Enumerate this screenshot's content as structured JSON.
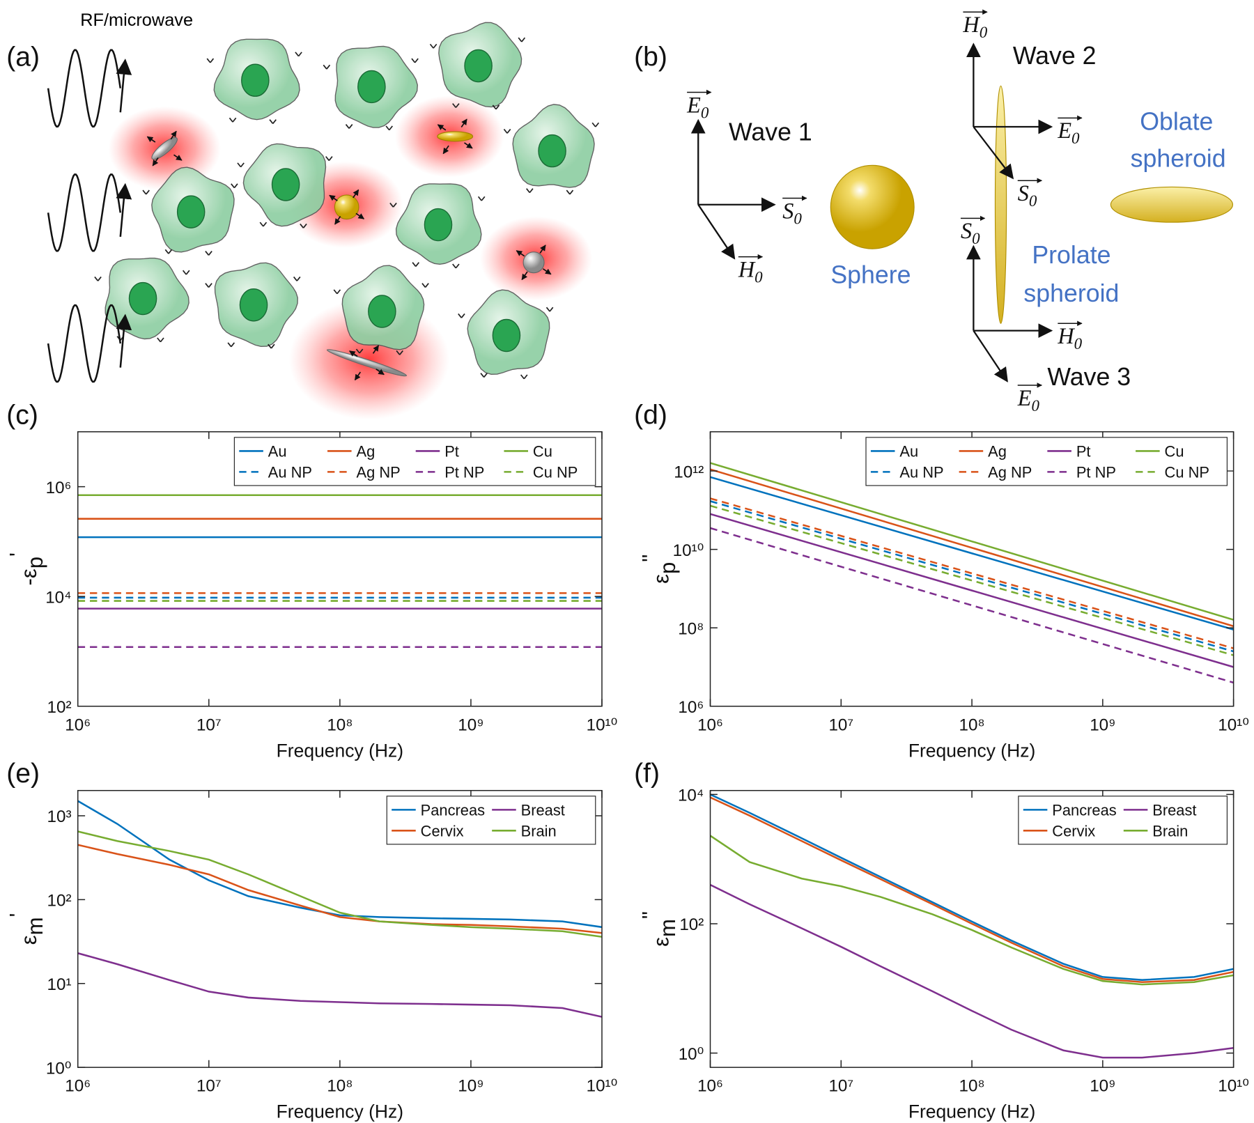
{
  "panel_labels": [
    "(a)",
    "(b)",
    "(c)",
    "(d)",
    "(e)",
    "(f)"
  ],
  "diagram_a": {
    "source_label": "RF/microwave"
  },
  "diagram_b": {
    "waves": [
      {
        "name": "Wave 1",
        "vectors": [
          {
            "symbol": "E",
            "sub": "0"
          },
          {
            "symbol": "S",
            "sub": "0"
          },
          {
            "symbol": "H",
            "sub": "0"
          }
        ]
      },
      {
        "name": "Wave 2",
        "vectors": [
          {
            "symbol": "H",
            "sub": "0"
          },
          {
            "symbol": "E",
            "sub": "0"
          },
          {
            "symbol": "S",
            "sub": "0"
          }
        ]
      },
      {
        "name": "Wave 3",
        "vectors": [
          {
            "symbol": "S",
            "sub": "0"
          },
          {
            "symbol": "H",
            "sub": "0"
          },
          {
            "symbol": "E",
            "sub": "0"
          }
        ]
      }
    ],
    "shapes": [
      [
        "Sphere"
      ],
      [
        "Prolate",
        "spheroid"
      ],
      [
        "Oblate",
        "spheroid"
      ]
    ]
  },
  "chart_data": [
    {
      "type": "line",
      "xscale": "log",
      "yscale": "log",
      "xlabel": "Frequency (Hz)",
      "ylabel": {
        "text": "-ε",
        "sub": "p",
        "sup": "'"
      },
      "x": [
        1000000,
        10000000000
      ],
      "xlim": [
        1000000,
        10000000000
      ],
      "xticks": [
        {
          "value": 1000000,
          "label": "10⁶"
        },
        {
          "value": 10000000,
          "label": "10⁷"
        },
        {
          "value": 100000000,
          "label": "10⁸"
        },
        {
          "value": 1000000000,
          "label": "10⁹"
        },
        {
          "value": 10000000000,
          "label": "10¹⁰"
        }
      ],
      "ylim": [
        100,
        10000000
      ],
      "yticks": [
        {
          "value": 100,
          "label": "10²"
        },
        {
          "value": 10000,
          "label": "10⁴"
        },
        {
          "value": 1000000,
          "label": "10⁶"
        }
      ],
      "legend": "northeast",
      "legend_columns": 4,
      "series": [
        {
          "name": "Au",
          "color": "#0072BD",
          "line_style": "solid",
          "values": [
            120000,
            120000
          ]
        },
        {
          "name": "Ag",
          "color": "#D95319",
          "line_style": "solid",
          "values": [
            260000,
            260000
          ]
        },
        {
          "name": "Pt",
          "color": "#7E2F8E",
          "line_style": "solid",
          "values": [
            6000,
            6000
          ]
        },
        {
          "name": "Cu",
          "color": "#77AC30",
          "line_style": "solid",
          "values": [
            700000,
            700000
          ]
        },
        {
          "name": "Au NP",
          "color": "#0072BD",
          "line_style": "dashed",
          "values": [
            9500,
            9500
          ]
        },
        {
          "name": "Ag NP",
          "color": "#D95319",
          "line_style": "dashed",
          "values": [
            11500,
            11500
          ]
        },
        {
          "name": "Pt NP",
          "color": "#7E2F8E",
          "line_style": "dashed",
          "values": [
            1200,
            1200
          ]
        },
        {
          "name": "Cu NP",
          "color": "#77AC30",
          "line_style": "dashed",
          "values": [
            8300,
            8300
          ]
        }
      ]
    },
    {
      "type": "line",
      "xscale": "log",
      "yscale": "log",
      "xlabel": "Frequency (Hz)",
      "ylabel": {
        "text": "ε",
        "sub": "p",
        "sup": "\""
      },
      "x": [
        1000000,
        10000000000
      ],
      "xlim": [
        1000000,
        10000000000
      ],
      "xticks": [
        {
          "value": 1000000,
          "label": "10⁶"
        },
        {
          "value": 10000000,
          "label": "10⁷"
        },
        {
          "value": 100000000,
          "label": "10⁸"
        },
        {
          "value": 1000000000,
          "label": "10⁹"
        },
        {
          "value": 10000000000,
          "label": "10¹⁰"
        }
      ],
      "ylim": [
        1000000,
        10000000000000
      ],
      "yticks": [
        {
          "value": 1000000,
          "label": "10⁶"
        },
        {
          "value": 100000000,
          "label": "10⁸"
        },
        {
          "value": 10000000000,
          "label": "10¹⁰"
        },
        {
          "value": 1000000000000,
          "label": "10¹²"
        }
      ],
      "legend": "northeast",
      "legend_columns": 4,
      "series": [
        {
          "name": "Au",
          "color": "#0072BD",
          "line_style": "solid",
          "values": [
            700000000000,
            90000000
          ]
        },
        {
          "name": "Ag",
          "color": "#D95319",
          "line_style": "solid",
          "values": [
            1100000000000,
            110000000
          ]
        },
        {
          "name": "Pt",
          "color": "#7E2F8E",
          "line_style": "solid",
          "values": [
            80000000000,
            10000000
          ]
        },
        {
          "name": "Cu",
          "color": "#77AC30",
          "line_style": "solid",
          "values": [
            1600000000000,
            160000000
          ]
        },
        {
          "name": "Au NP",
          "color": "#0072BD",
          "line_style": "dashed",
          "values": [
            170000000000,
            25000000
          ]
        },
        {
          "name": "Ag NP",
          "color": "#D95319",
          "line_style": "dashed",
          "values": [
            200000000000,
            30000000
          ]
        },
        {
          "name": "Pt NP",
          "color": "#7E2F8E",
          "line_style": "dashed",
          "values": [
            35000000000,
            4000000
          ]
        },
        {
          "name": "Cu NP",
          "color": "#77AC30",
          "line_style": "dashed",
          "values": [
            130000000000,
            20000000
          ]
        }
      ]
    },
    {
      "type": "line",
      "xscale": "log",
      "yscale": "log",
      "xlabel": "Frequency (Hz)",
      "ylabel": {
        "text": "ε",
        "sub": "m",
        "sup": "'"
      },
      "x": [
        1000000,
        2000000,
        5000000,
        10000000,
        20000000,
        50000000,
        100000000,
        200000000,
        500000000,
        1000000000,
        2000000000,
        5000000000,
        10000000000
      ],
      "xlim": [
        1000000,
        10000000000
      ],
      "xticks": [
        {
          "value": 1000000,
          "label": "10⁶"
        },
        {
          "value": 10000000,
          "label": "10⁷"
        },
        {
          "value": 100000000,
          "label": "10⁸"
        },
        {
          "value": 1000000000,
          "label": "10⁹"
        },
        {
          "value": 10000000000,
          "label": "10¹⁰"
        }
      ],
      "ylim": [
        1,
        2000
      ],
      "yticks": [
        {
          "value": 1,
          "label": "10⁰"
        },
        {
          "value": 10,
          "label": "10¹"
        },
        {
          "value": 100,
          "label": "10²"
        },
        {
          "value": 1000,
          "label": "10³"
        }
      ],
      "legend": "northeast",
      "legend_columns": 2,
      "series": [
        {
          "name": "Pancreas",
          "color": "#0072BD",
          "line_style": "solid",
          "values": [
            1500,
            800,
            300,
            170,
            110,
            80,
            65,
            62,
            60,
            59,
            58,
            55,
            47
          ]
        },
        {
          "name": "Breast",
          "color": "#7E2F8E",
          "line_style": "solid",
          "values": [
            23,
            17,
            11,
            8,
            6.8,
            6.2,
            6,
            5.8,
            5.7,
            5.6,
            5.5,
            5.1,
            4
          ]
        },
        {
          "name": "Cervix",
          "color": "#D95319",
          "line_style": "solid",
          "values": [
            450,
            350,
            260,
            200,
            130,
            85,
            62,
            55,
            51,
            50,
            48,
            45,
            40
          ]
        },
        {
          "name": "Brain",
          "color": "#77AC30",
          "line_style": "solid",
          "values": [
            650,
            500,
            380,
            300,
            200,
            110,
            70,
            55,
            50,
            47,
            45,
            42,
            36
          ]
        }
      ]
    },
    {
      "type": "line",
      "xscale": "log",
      "yscale": "log",
      "xlabel": "Frequency (Hz)",
      "ylabel": {
        "text": "ε",
        "sub": "m",
        "sup": "\""
      },
      "x": [
        1000000,
        2000000,
        5000000,
        10000000,
        20000000,
        50000000,
        100000000,
        200000000,
        500000000,
        1000000000,
        2000000000,
        5000000000,
        10000000000
      ],
      "xlim": [
        1000000,
        10000000000
      ],
      "xticks": [
        {
          "value": 1000000,
          "label": "10⁶"
        },
        {
          "value": 10000000,
          "label": "10⁷"
        },
        {
          "value": 100000000,
          "label": "10⁸"
        },
        {
          "value": 1000000000,
          "label": "10⁹"
        },
        {
          "value": 10000000000,
          "label": "10¹⁰"
        }
      ],
      "ylim": [
        0.6,
        11500
      ],
      "yticks": [
        {
          "value": 1,
          "label": "10⁰"
        },
        {
          "value": 100,
          "label": "10²"
        },
        {
          "value": 10000,
          "label": "10⁴"
        }
      ],
      "legend": "northeast",
      "legend_columns": 2,
      "series": [
        {
          "name": "Pancreas",
          "color": "#0072BD",
          "line_style": "solid",
          "values": [
            10000,
            5200,
            2100,
            1050,
            530,
            215,
            108,
            55,
            24,
            15,
            13.5,
            15,
            20
          ]
        },
        {
          "name": "Breast",
          "color": "#7E2F8E",
          "line_style": "solid",
          "values": [
            400,
            200,
            85,
            44,
            22,
            9,
            4.5,
            2.3,
            1.1,
            0.85,
            0.85,
            1,
            1.2
          ]
        },
        {
          "name": "Cervix",
          "color": "#D95319",
          "line_style": "solid",
          "values": [
            9000,
            4700,
            1900,
            960,
            490,
            200,
            100,
            51,
            22,
            14,
            12.5,
            13.5,
            18
          ]
        },
        {
          "name": "Brain",
          "color": "#77AC30",
          "line_style": "solid",
          "values": [
            2300,
            900,
            500,
            380,
            260,
            140,
            80,
            43,
            20,
            13,
            11.5,
            12.5,
            16
          ]
        }
      ]
    }
  ]
}
